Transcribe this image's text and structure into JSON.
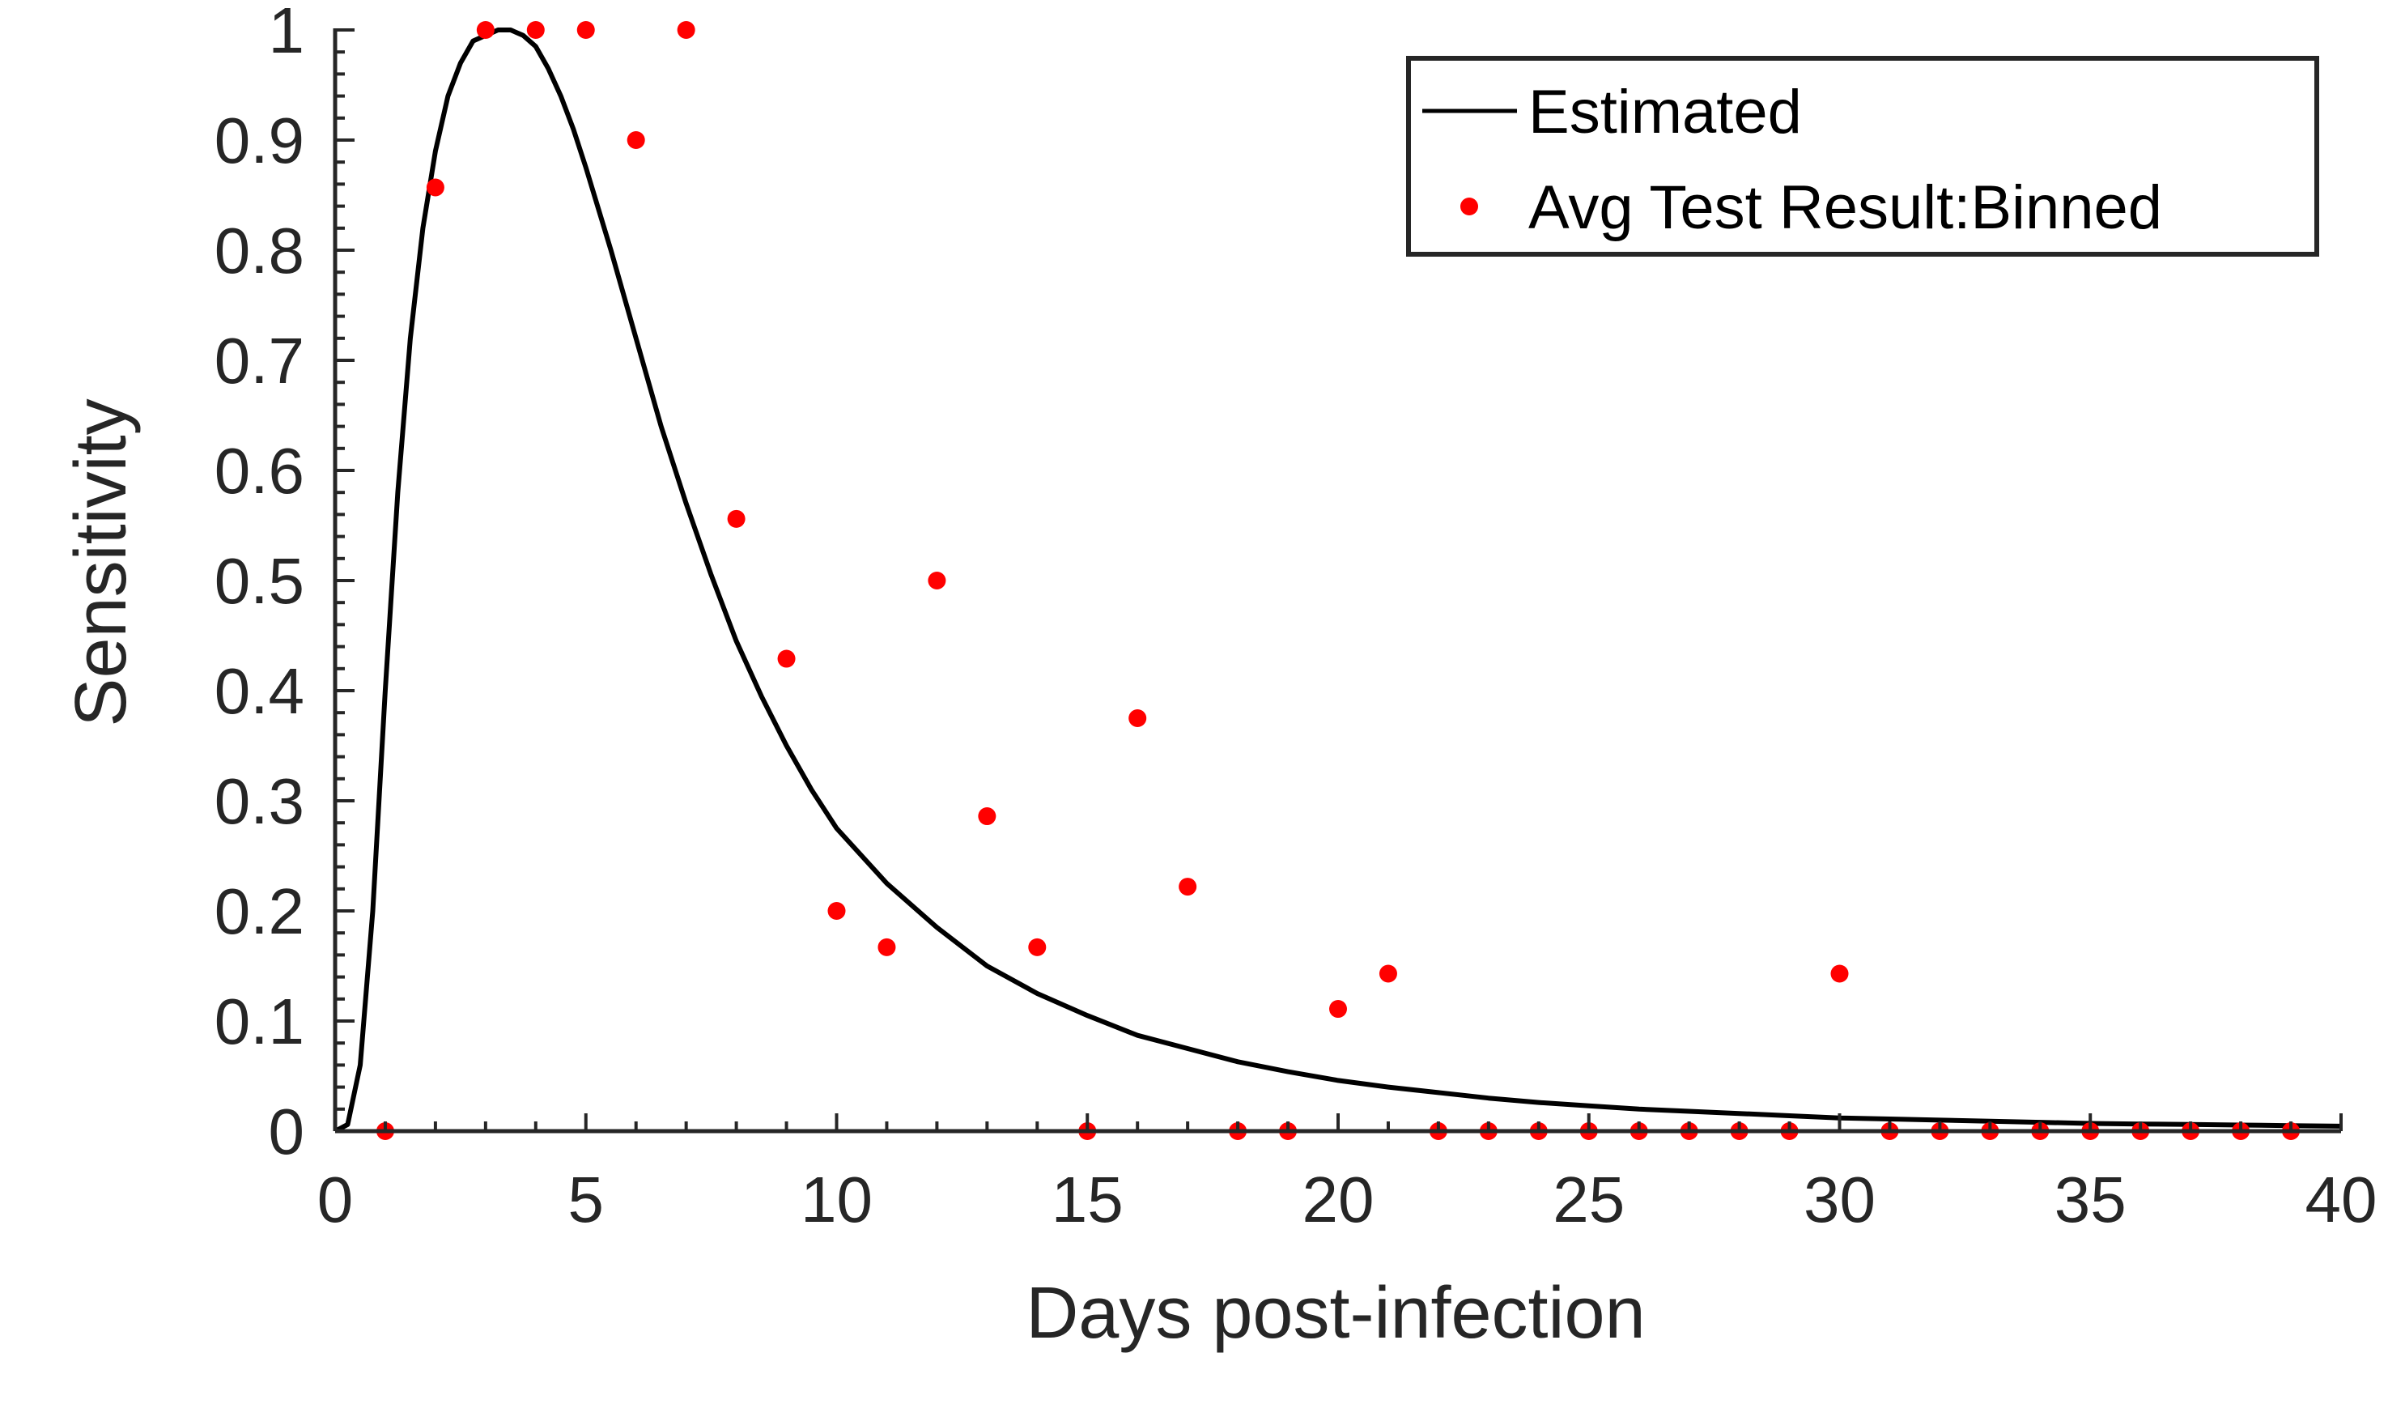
{
  "chart_data": {
    "type": "line",
    "xlabel": "Days post-infection",
    "ylabel": "Sensitivity",
    "xlim": [
      0,
      40
    ],
    "ylim": [
      0,
      1
    ],
    "xticks": [
      0,
      5,
      10,
      15,
      20,
      25,
      30,
      35,
      40
    ],
    "xtick_labels": [
      "0",
      "5",
      "10",
      "15",
      "20",
      "25",
      "30",
      "35",
      "40"
    ],
    "yticks": [
      0,
      0.1,
      0.2,
      0.3,
      0.4,
      0.5,
      0.6,
      0.7,
      0.8,
      0.9,
      1
    ],
    "ytick_labels": [
      "0",
      "0.1",
      "0.2",
      "0.3",
      "0.4",
      "0.5",
      "0.6",
      "0.7",
      "0.8",
      "0.9",
      "1"
    ],
    "grid": false,
    "legend": {
      "placement": "top-right"
    },
    "series": [
      {
        "name": "Estimated",
        "style": "line",
        "color": "#000000",
        "x": [
          0,
          0.25,
          0.5,
          0.75,
          1,
          1.25,
          1.5,
          1.75,
          2,
          2.25,
          2.5,
          2.75,
          3,
          3.25,
          3.5,
          3.75,
          4,
          4.25,
          4.5,
          4.75,
          5,
          5.5,
          6,
          6.5,
          7,
          7.5,
          8,
          8.5,
          9,
          9.5,
          10,
          11,
          12,
          13,
          14,
          15,
          16,
          17,
          18,
          19,
          20,
          21,
          22,
          23,
          24,
          25,
          26,
          27,
          28,
          29,
          30,
          31,
          32,
          33,
          34,
          35,
          36,
          37,
          38,
          39,
          40
        ],
        "y": [
          0,
          0.006,
          0.06,
          0.2,
          0.4,
          0.58,
          0.72,
          0.82,
          0.89,
          0.94,
          0.97,
          0.99,
          0.995,
          1.0,
          1.0,
          0.995,
          0.985,
          0.965,
          0.94,
          0.91,
          0.875,
          0.8,
          0.72,
          0.64,
          0.57,
          0.505,
          0.445,
          0.395,
          0.35,
          0.31,
          0.275,
          0.225,
          0.185,
          0.15,
          0.125,
          0.105,
          0.087,
          0.075,
          0.063,
          0.054,
          0.046,
          0.04,
          0.035,
          0.03,
          0.026,
          0.023,
          0.02,
          0.018,
          0.016,
          0.014,
          0.012,
          0.011,
          0.01,
          0.009,
          0.008,
          0.007,
          0.0065,
          0.006,
          0.0055,
          0.005,
          0.0045
        ]
      },
      {
        "name": "Avg Test Result:Binned",
        "style": "points",
        "color": "#ff0000",
        "x": [
          1,
          2,
          3,
          4,
          5,
          6,
          7,
          8,
          9,
          10,
          11,
          12,
          13,
          14,
          15,
          16,
          17,
          18,
          19,
          20,
          21,
          22,
          23,
          24,
          25,
          26,
          27,
          28,
          29,
          30,
          31,
          32,
          33,
          34,
          35,
          36,
          37,
          38,
          39
        ],
        "y": [
          0,
          0.857,
          1,
          1,
          1,
          0.9,
          1,
          0.556,
          0.429,
          0.2,
          0.167,
          0.5,
          0.286,
          0.167,
          0,
          0.375,
          0.222,
          0,
          0,
          0.111,
          0.143,
          0,
          0,
          0,
          0,
          0,
          0,
          0,
          0,
          0.143,
          0,
          0,
          0,
          0,
          0,
          0,
          0,
          0,
          0
        ]
      }
    ]
  }
}
